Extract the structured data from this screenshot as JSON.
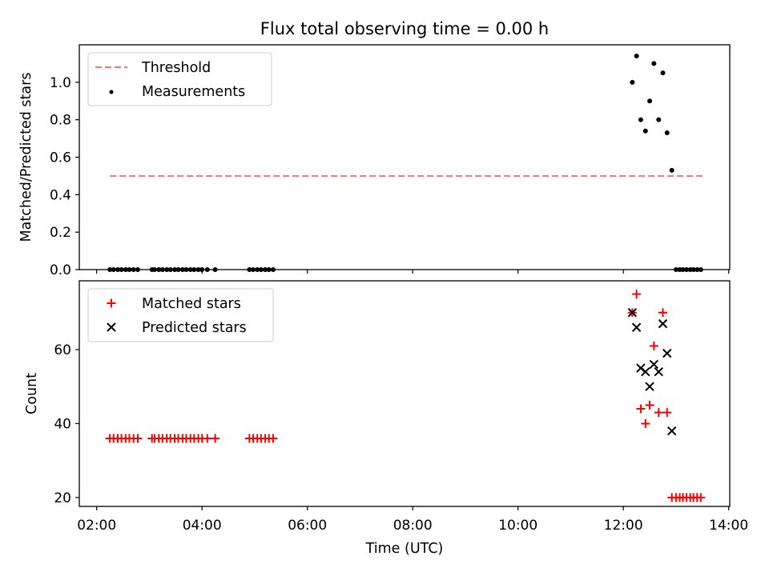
{
  "chart_data": {
    "title": "Flux total observing time = 0.00 h",
    "xlabel": "Time (UTC)",
    "x_ticks": [
      {
        "value": 2,
        "label": "02:00"
      },
      {
        "value": 4,
        "label": "04:00"
      },
      {
        "value": 6,
        "label": "06:00"
      },
      {
        "value": 8,
        "label": "08:00"
      },
      {
        "value": 10,
        "label": "10:00"
      },
      {
        "value": 12,
        "label": "12:00"
      },
      {
        "value": 14,
        "label": "14:00"
      }
    ],
    "xlim": [
      1.67,
      14.02
    ],
    "colors": {
      "threshold": "#f08080",
      "measurements": "#000000",
      "matched": "#ff0000",
      "predicted": "#000000"
    },
    "panels": [
      {
        "type": "scatter",
        "ylabel": "Matched/Predicted stars",
        "ylim": [
          0,
          1.2
        ],
        "y_ticks": [
          0.0,
          0.2,
          0.4,
          0.6,
          0.8,
          1.0
        ],
        "y_tick_labels": [
          "0.0",
          "0.2",
          "0.4",
          "0.6",
          "0.8",
          "1.0"
        ],
        "legend": {
          "placement": "top-left",
          "entries": [
            "Threshold",
            "Measurements"
          ]
        },
        "threshold": {
          "name": "Threshold",
          "y": 0.5,
          "x_range": [
            2.25,
            13.5
          ]
        },
        "series": [
          {
            "name": "Measurements",
            "marker": "dot",
            "points": [
              [
                2.25,
                0
              ],
              [
                2.32,
                0
              ],
              [
                2.4,
                0
              ],
              [
                2.47,
                0
              ],
              [
                2.55,
                0
              ],
              [
                2.62,
                0
              ],
              [
                2.7,
                0
              ],
              [
                2.78,
                0
              ],
              [
                3.05,
                0
              ],
              [
                3.1,
                0
              ],
              [
                3.18,
                0
              ],
              [
                3.25,
                0
              ],
              [
                3.33,
                0
              ],
              [
                3.4,
                0
              ],
              [
                3.48,
                0
              ],
              [
                3.55,
                0
              ],
              [
                3.63,
                0
              ],
              [
                3.7,
                0
              ],
              [
                3.78,
                0
              ],
              [
                3.85,
                0
              ],
              [
                3.93,
                0
              ],
              [
                4.0,
                0
              ],
              [
                4.1,
                0
              ],
              [
                4.25,
                0
              ],
              [
                4.9,
                0
              ],
              [
                4.97,
                0
              ],
              [
                5.05,
                0
              ],
              [
                5.12,
                0
              ],
              [
                5.2,
                0
              ],
              [
                5.27,
                0
              ],
              [
                5.35,
                0
              ],
              [
                12.17,
                1.0
              ],
              [
                12.25,
                1.14
              ],
              [
                12.33,
                0.8
              ],
              [
                12.42,
                0.74
              ],
              [
                12.5,
                0.9
              ],
              [
                12.58,
                1.1
              ],
              [
                12.67,
                0.8
              ],
              [
                12.75,
                1.05
              ],
              [
                12.83,
                0.73
              ],
              [
                12.92,
                0.53
              ],
              [
                13.0,
                0
              ],
              [
                13.07,
                0
              ],
              [
                13.13,
                0
              ],
              [
                13.2,
                0
              ],
              [
                13.27,
                0
              ],
              [
                13.33,
                0
              ],
              [
                13.4,
                0
              ],
              [
                13.47,
                0
              ]
            ]
          }
        ]
      },
      {
        "type": "scatter",
        "ylabel": "Count",
        "ylim": [
          17.6,
          78.6
        ],
        "y_ticks": [
          20,
          40,
          60
        ],
        "y_tick_labels": [
          "20",
          "40",
          "60"
        ],
        "legend": {
          "placement": "top-left",
          "entries": [
            "Matched stars",
            "Predicted stars"
          ]
        },
        "series": [
          {
            "name": "Matched stars",
            "marker": "plus",
            "points": [
              [
                2.25,
                36
              ],
              [
                2.32,
                36
              ],
              [
                2.4,
                36
              ],
              [
                2.47,
                36
              ],
              [
                2.55,
                36
              ],
              [
                2.62,
                36
              ],
              [
                2.7,
                36
              ],
              [
                2.78,
                36
              ],
              [
                3.05,
                36
              ],
              [
                3.1,
                36
              ],
              [
                3.18,
                36
              ],
              [
                3.25,
                36
              ],
              [
                3.33,
                36
              ],
              [
                3.4,
                36
              ],
              [
                3.48,
                36
              ],
              [
                3.55,
                36
              ],
              [
                3.63,
                36
              ],
              [
                3.7,
                36
              ],
              [
                3.78,
                36
              ],
              [
                3.85,
                36
              ],
              [
                3.93,
                36
              ],
              [
                4.0,
                36
              ],
              [
                4.1,
                36
              ],
              [
                4.25,
                36
              ],
              [
                4.9,
                36
              ],
              [
                4.97,
                36
              ],
              [
                5.05,
                36
              ],
              [
                5.12,
                36
              ],
              [
                5.2,
                36
              ],
              [
                5.27,
                36
              ],
              [
                5.35,
                36
              ],
              [
                12.17,
                70
              ],
              [
                12.25,
                75
              ],
              [
                12.33,
                44
              ],
              [
                12.42,
                40
              ],
              [
                12.5,
                45
              ],
              [
                12.58,
                61
              ],
              [
                12.67,
                43
              ],
              [
                12.75,
                70
              ],
              [
                12.83,
                43
              ],
              [
                12.92,
                20
              ],
              [
                13.0,
                20
              ],
              [
                13.07,
                20
              ],
              [
                13.13,
                20
              ],
              [
                13.2,
                20
              ],
              [
                13.27,
                20
              ],
              [
                13.33,
                20
              ],
              [
                13.4,
                20
              ],
              [
                13.47,
                20
              ]
            ]
          },
          {
            "name": "Predicted stars",
            "marker": "x",
            "points": [
              [
                12.17,
                70
              ],
              [
                12.25,
                66
              ],
              [
                12.33,
                55
              ],
              [
                12.42,
                54
              ],
              [
                12.5,
                50
              ],
              [
                12.58,
                56
              ],
              [
                12.67,
                54
              ],
              [
                12.75,
                67
              ],
              [
                12.83,
                59
              ],
              [
                12.92,
                38
              ]
            ]
          }
        ]
      }
    ]
  }
}
